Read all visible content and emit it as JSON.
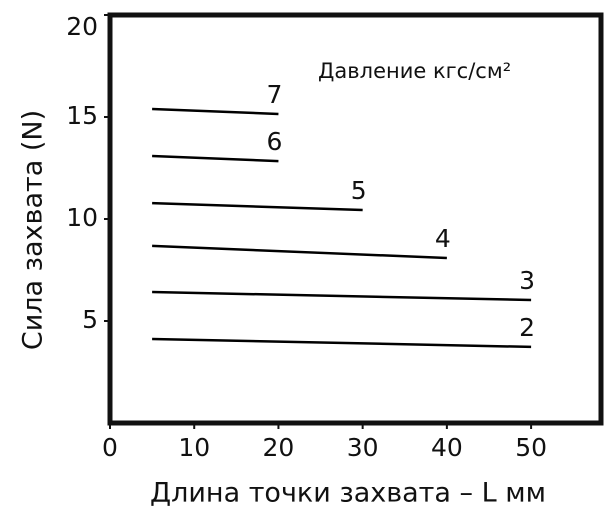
{
  "chart_data": {
    "type": "line",
    "x_label": "Длина точки захвата – L мм",
    "y_label": "Сила захвата (N)",
    "annotation": "Давление кгс/см²",
    "xlim": [
      0,
      58.3
    ],
    "xticks": [
      0,
      10,
      20,
      30,
      40,
      50
    ],
    "ylim": [
      0,
      20
    ],
    "yticks": [
      5,
      10,
      15,
      20
    ],
    "series": [
      {
        "name": "7",
        "color": "#000000",
        "x": [
          5,
          20
        ],
        "values": [
          15.39,
          15.15
        ]
      },
      {
        "name": "6",
        "color": "#000000",
        "x": [
          5,
          20
        ],
        "values": [
          13.09,
          12.84
        ]
      },
      {
        "name": "5",
        "color": "#000000",
        "x": [
          5,
          30
        ],
        "values": [
          10.78,
          10.44
        ]
      },
      {
        "name": "4",
        "color": "#000000",
        "x": [
          5,
          40
        ],
        "values": [
          8.68,
          8.09
        ]
      },
      {
        "name": "3",
        "color": "#000000",
        "x": [
          5,
          50
        ],
        "values": [
          6.42,
          6.03
        ]
      },
      {
        "name": "2",
        "color": "#000000",
        "x": [
          5,
          50
        ],
        "values": [
          4.12,
          3.73
        ]
      }
    ]
  }
}
